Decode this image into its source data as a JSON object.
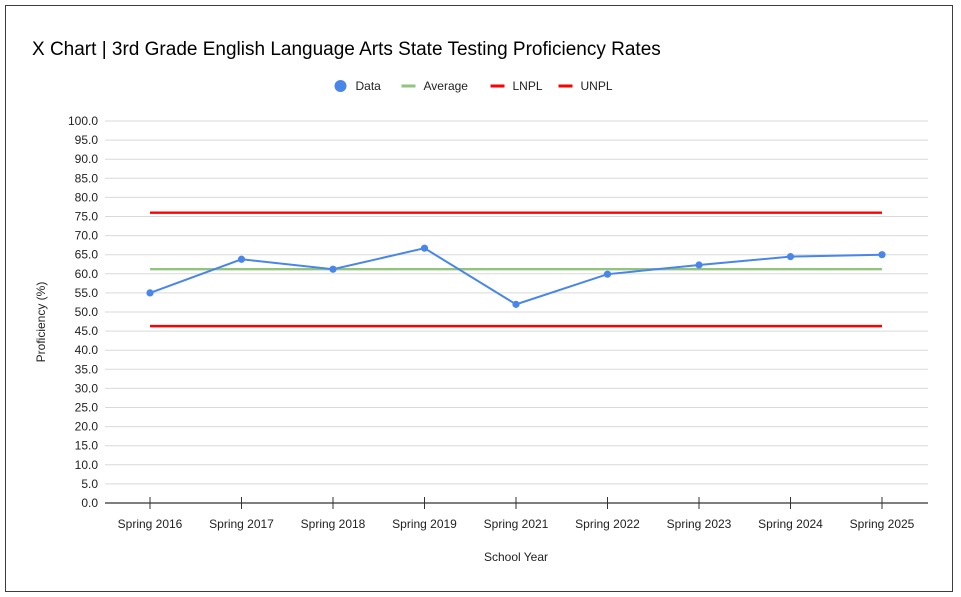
{
  "chart_data": {
    "type": "line",
    "title": "X Chart | 3rd Grade English Language Arts State Testing Proficiency Rates",
    "xlabel": "School Year",
    "ylabel": "Proficiency (%)",
    "ylim": [
      0,
      100
    ],
    "y_ticks": [
      "0.0",
      "5.0",
      "10.0",
      "15.0",
      "20.0",
      "25.0",
      "30.0",
      "35.0",
      "40.0",
      "45.0",
      "50.0",
      "55.0",
      "60.0",
      "65.0",
      "70.0",
      "75.0",
      "80.0",
      "85.0",
      "90.0",
      "95.0",
      "100.0"
    ],
    "grid": true,
    "legend_position": "top",
    "categories": [
      "Spring 2016",
      "Spring 2017",
      "Spring 2018",
      "Spring 2019",
      "Spring 2021",
      "Spring 2022",
      "Spring 2023",
      "Spring 2024",
      "Spring 2025"
    ],
    "series": [
      {
        "name": "Data",
        "color": "#4a86e8",
        "style": "line-markers",
        "values": [
          55.0,
          63.8,
          61.2,
          66.7,
          52.0,
          59.9,
          62.3,
          64.5,
          65.0
        ]
      },
      {
        "name": "Average",
        "color": "#93c47d",
        "style": "line",
        "values": [
          61.2,
          61.2,
          61.2,
          61.2,
          61.2,
          61.2,
          61.2,
          61.2,
          61.2
        ]
      },
      {
        "name": "LNPL",
        "color": "#ff0000",
        "style": "line",
        "values": [
          46.3,
          46.3,
          46.3,
          46.3,
          46.3,
          46.3,
          46.3,
          46.3,
          46.3
        ]
      },
      {
        "name": "UNPL",
        "color": "#ff0000",
        "style": "line",
        "values": [
          76.0,
          76.0,
          76.0,
          76.0,
          76.0,
          76.0,
          76.0,
          76.0,
          76.0
        ]
      }
    ]
  }
}
